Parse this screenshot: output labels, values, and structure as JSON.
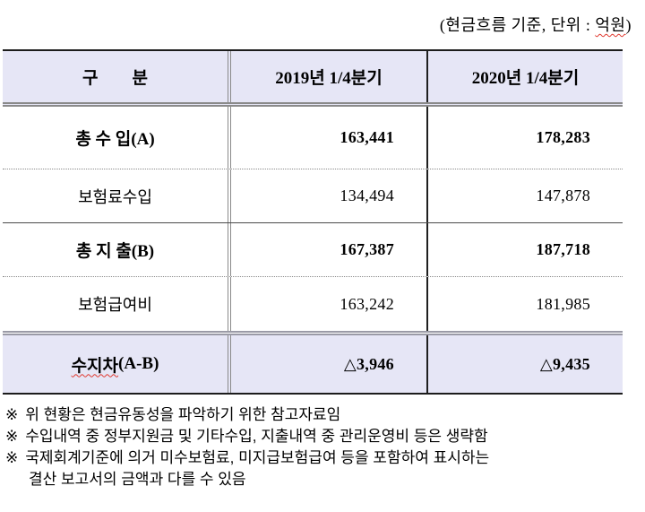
{
  "caption": {
    "text_before_unit": "(현금흐름 기준, 단위 : ",
    "unit": "억원",
    "text_after_unit": ")"
  },
  "table": {
    "columns": [
      "구        분",
      "2019년 1/4분기",
      "2020년 1/4분기"
    ],
    "rows": [
      {
        "label": "총 수 입(A)",
        "y2019": "163,441",
        "y2020": "178,283"
      },
      {
        "label": "보험료수입",
        "y2019": "134,494",
        "y2020": "147,878"
      },
      {
        "label": "총 지 출(B)",
        "y2019": "167,387",
        "y2020": "187,718"
      },
      {
        "label": "보험급여비",
        "y2019": "163,242",
        "y2020": "181,985"
      },
      {
        "label_main": "수지차",
        "label_suffix": "(A-B)",
        "y2019": "△3,946",
        "y2020": "△9,435"
      }
    ]
  },
  "footnotes": [
    {
      "marker": "※",
      "lines": [
        "위 현황은 현금유동성을 파악하기 위한 참고자료임"
      ]
    },
    {
      "marker": "※",
      "lines": [
        "수입내역 중 정부지원금 및 기타수입, 지출내역 중 관리운영비 등은 생략함"
      ]
    },
    {
      "marker": "※",
      "lines": [
        "국제회계기준에 의거 미수보험료, 미지급보험급여 등을 포함하여 표시하는",
        "결산 보고서의 금액과 다를 수 있음"
      ]
    }
  ],
  "colors": {
    "header_bg": "#e6e6f6",
    "total_row_bg": "#e6e6f6",
    "border_dark": "#1c1c1c",
    "border_double_gray": "#8a8a8a",
    "spellcheck_underline": "#e0392f"
  }
}
